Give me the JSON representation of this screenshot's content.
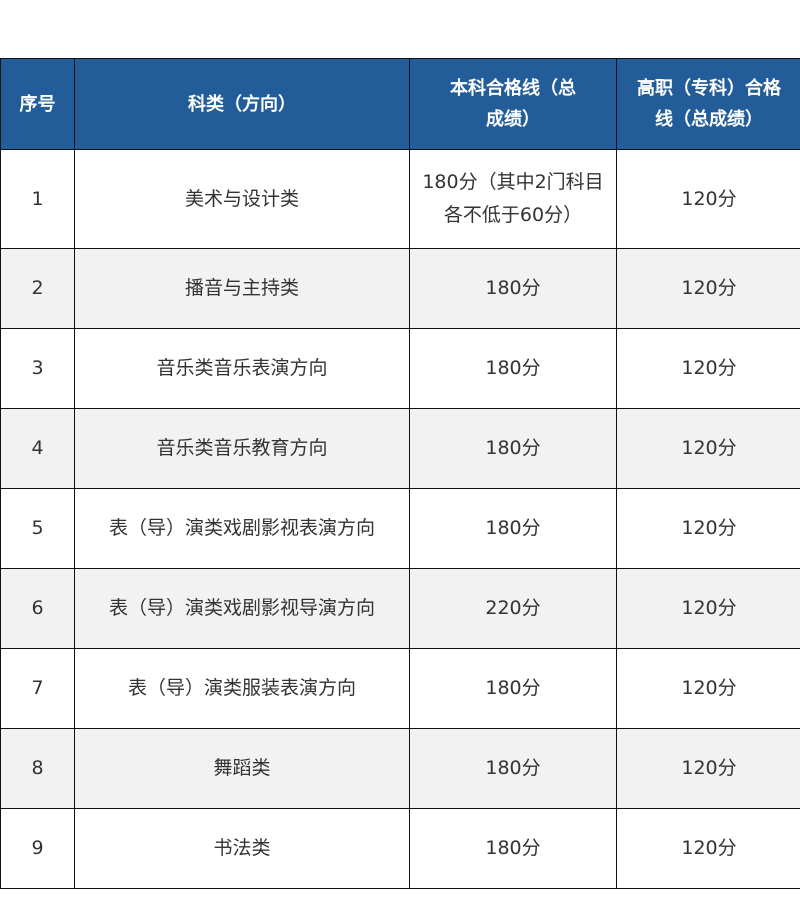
{
  "table": {
    "headers": [
      "序号",
      "科类（方向）",
      "本科合格线（总成绩）",
      "高职（专科）合格线（总成绩）"
    ],
    "rows": [
      [
        "1",
        "美术与设计类",
        "180分（其中2门科目各不低于60分）",
        "120分"
      ],
      [
        "2",
        "播音与主持类",
        "180分",
        "120分"
      ],
      [
        "3",
        "音乐类音乐表演方向",
        "180分",
        "120分"
      ],
      [
        "4",
        "音乐类音乐教育方向",
        "180分",
        "120分"
      ],
      [
        "5",
        "表（导）演类戏剧影视表演方向",
        "180分",
        "120分"
      ],
      [
        "6",
        "表（导）演类戏剧影视导演方向",
        "220分",
        "120分"
      ],
      [
        "7",
        "表（导）演类服装表演方向",
        "180分",
        "120分"
      ],
      [
        "8",
        "舞蹈类",
        "180分",
        "120分"
      ],
      [
        "9",
        "书法类",
        "180分",
        "120分"
      ]
    ]
  },
  "colors": {
    "header_bg": "#225d99",
    "alt_row_bg": "#f2f2f2"
  }
}
